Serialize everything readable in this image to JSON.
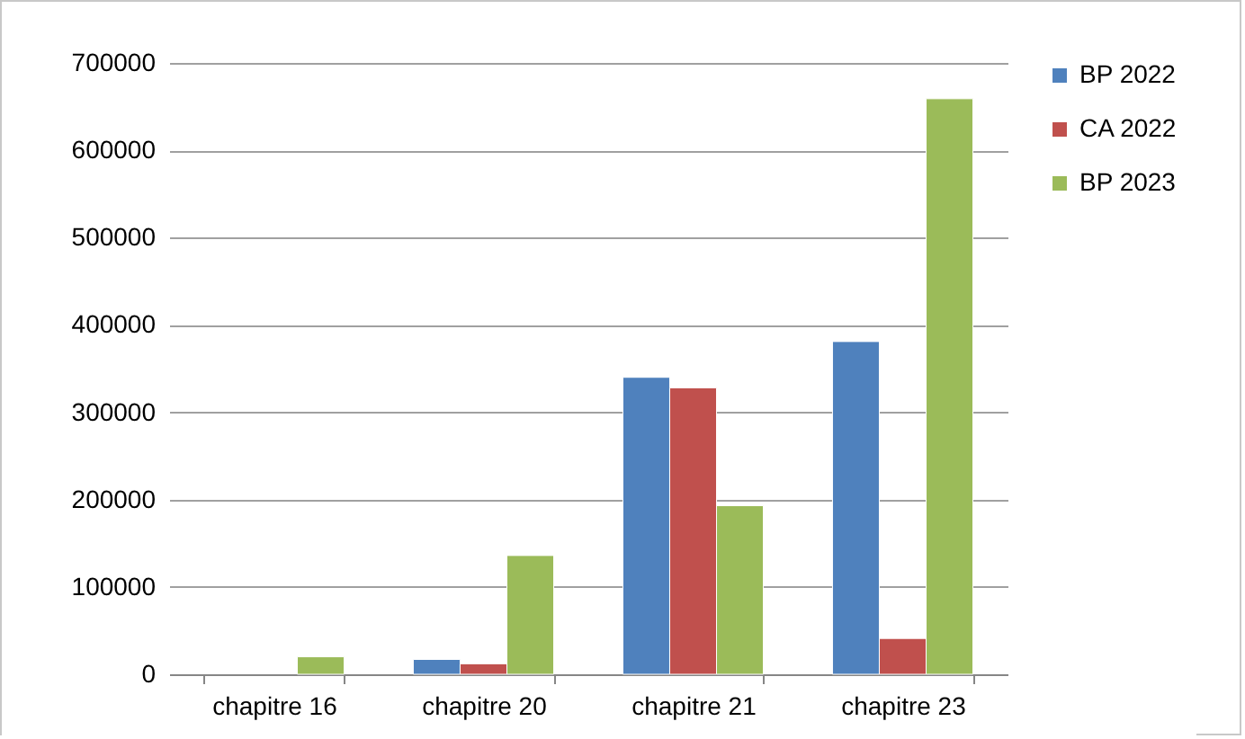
{
  "chart_data": {
    "type": "bar",
    "categories": [
      "chapitre 16",
      "chapitre 20",
      "chapitre 21",
      "chapitre 23"
    ],
    "series": [
      {
        "name": "BP 2022",
        "color": "#4f81bd",
        "values": [
          null,
          17000,
          340000,
          381000
        ]
      },
      {
        "name": "CA 2022",
        "color": "#c0504d",
        "values": [
          null,
          12000,
          328000,
          41000
        ]
      },
      {
        "name": "BP 2023",
        "color": "#9bbb59",
        "values": [
          20000,
          136000,
          193000,
          659000
        ]
      }
    ],
    "ylim": [
      0,
      700000
    ],
    "yticks": [
      0,
      100000,
      200000,
      300000,
      400000,
      500000,
      600000,
      700000
    ],
    "grid": "y",
    "legend": "right"
  }
}
